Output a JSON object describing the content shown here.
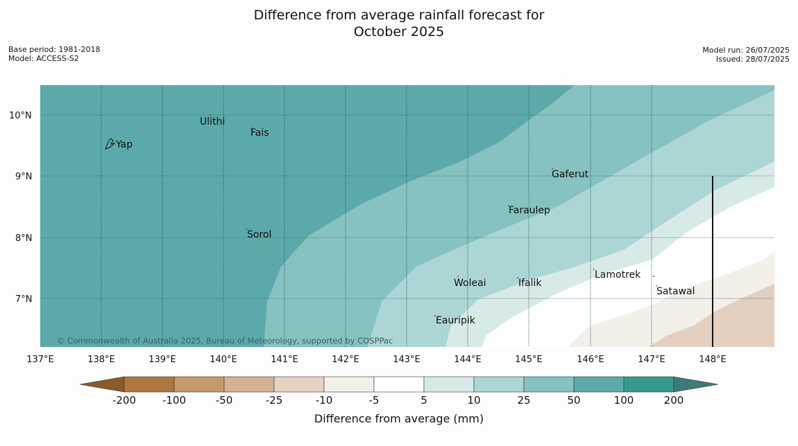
{
  "header": {
    "title_line1": "Difference from average rainfall forecast for",
    "title_line2": "October 2025",
    "base_period": "Base period: 1981-2018",
    "model": "Model: ACCESS-S2",
    "model_run": "Model run: 26/07/2025",
    "issued": "Issued: 28/07/2025"
  },
  "map": {
    "lon_labels": [
      "137°E",
      "138°E",
      "139°E",
      "140°E",
      "141°E",
      "142°E",
      "143°E",
      "144°E",
      "145°E",
      "146°E",
      "147°E",
      "148°E"
    ],
    "lat_labels": [
      "10°N",
      "9°N",
      "8°N",
      "7°N"
    ],
    "places": [
      {
        "name": "Yap"
      },
      {
        "name": "Ulithi"
      },
      {
        "name": "Fais"
      },
      {
        "name": "Gaferut"
      },
      {
        "name": "Faraulep"
      },
      {
        "name": "Sorol"
      },
      {
        "name": "Lamotrek"
      },
      {
        "name": "Woleai"
      },
      {
        "name": "Ifalik"
      },
      {
        "name": "Satawal"
      },
      {
        "name": "Eauripik"
      }
    ],
    "copyright": "© Commonwealth of Australia 2025, Bureau of Meteorology, supported by COSPPac"
  },
  "colorbar": {
    "title": "Difference from average (mm)",
    "tick_labels": [
      "-200",
      "-100",
      "-50",
      "-25",
      "-10",
      "-5",
      "5",
      "10",
      "25",
      "50",
      "100",
      "200"
    ],
    "colors": [
      "#8a5a2b",
      "#b07640",
      "#c49a6c",
      "#d5b391",
      "#e6d2c1",
      "#f3efe9",
      "#ffffff",
      "#d7eae8",
      "#acd6d5",
      "#86c2c0",
      "#5baaa9",
      "#35998f",
      "#3d7a78"
    ]
  }
}
